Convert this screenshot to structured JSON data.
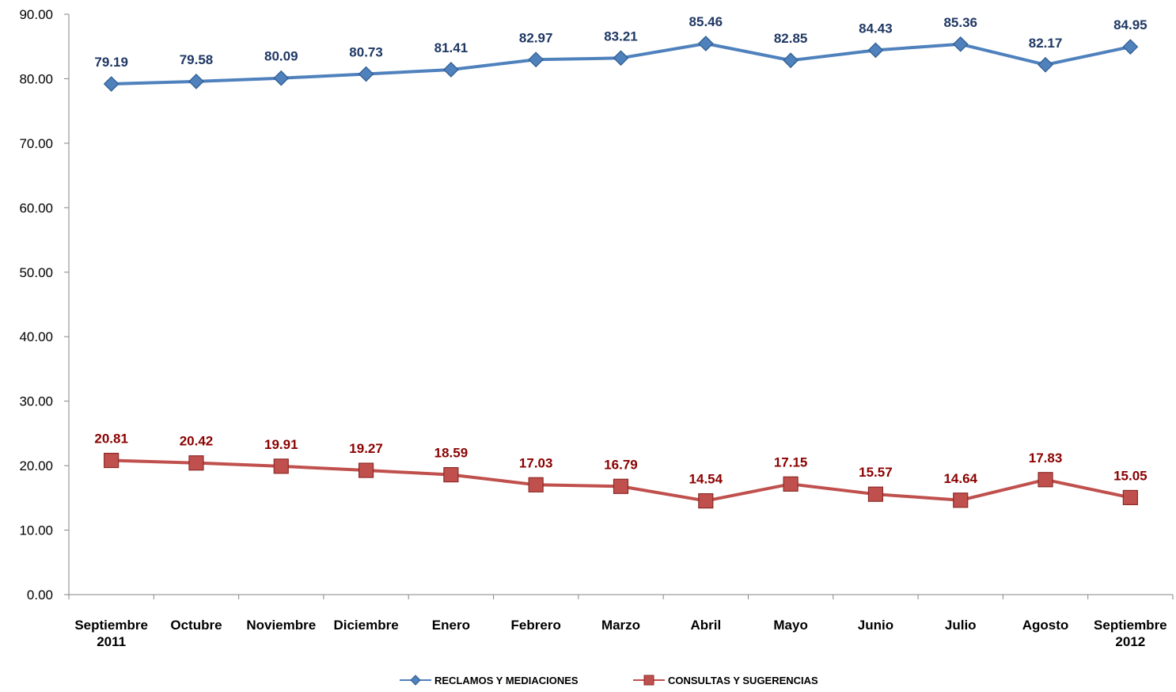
{
  "chart_data": {
    "type": "line",
    "categories": [
      [
        "Septiembre",
        "2011"
      ],
      [
        "Octubre"
      ],
      [
        "Noviembre"
      ],
      [
        "Diciembre"
      ],
      [
        "Enero"
      ],
      [
        "Febrero"
      ],
      [
        "Marzo"
      ],
      [
        "Abril"
      ],
      [
        "Mayo"
      ],
      [
        "Junio"
      ],
      [
        "Julio"
      ],
      [
        "Agosto"
      ],
      [
        "Septiembre",
        "2012"
      ]
    ],
    "series": [
      {
        "name": "RECLAMOS Y MEDIACIONES",
        "values": [
          79.19,
          79.58,
          80.09,
          80.73,
          81.41,
          82.97,
          83.21,
          85.46,
          82.85,
          84.43,
          85.36,
          82.17,
          84.95
        ],
        "color": "#4f81bd",
        "label_color": "#1f3864",
        "marker": "diamond"
      },
      {
        "name": "CONSULTAS Y SUGERENCIAS",
        "values": [
          20.81,
          20.42,
          19.91,
          19.27,
          18.59,
          17.03,
          16.79,
          14.54,
          17.15,
          15.57,
          14.64,
          17.83,
          15.05
        ],
        "color": "#c0504d",
        "label_color": "#8b0000",
        "marker": "square"
      }
    ],
    "yticks": [
      "0.00",
      "10.00",
      "20.00",
      "30.00",
      "40.00",
      "50.00",
      "60.00",
      "70.00",
      "80.00",
      "90.00"
    ],
    "ylim": [
      0,
      90
    ],
    "grid": false,
    "legend_position": "bottom"
  }
}
